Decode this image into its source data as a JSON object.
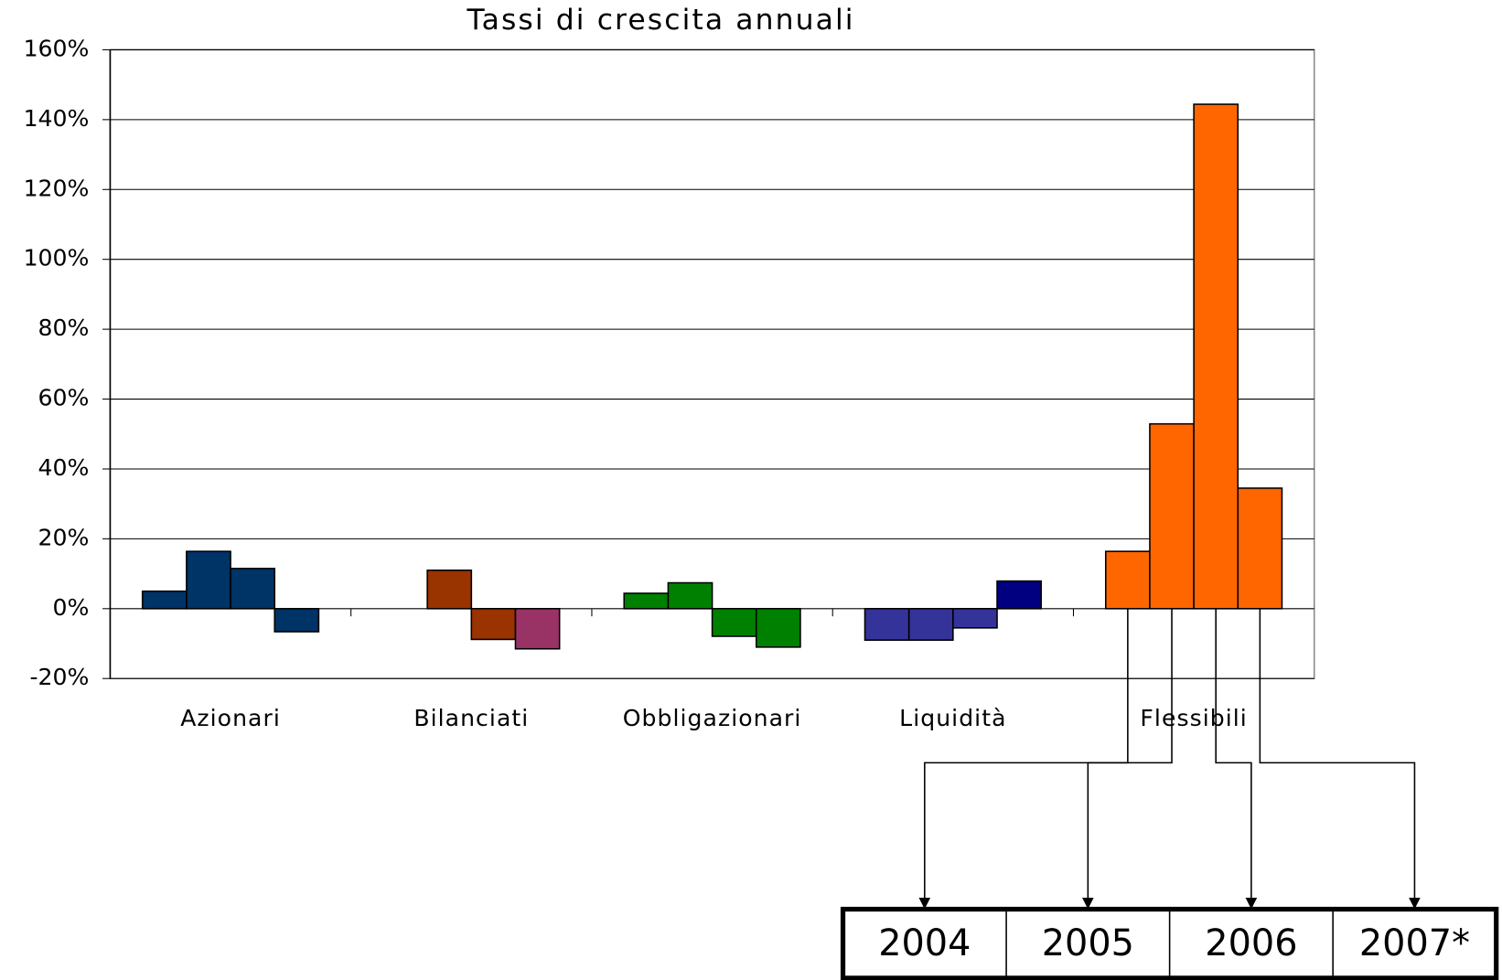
{
  "chart_data": {
    "type": "bar",
    "title": "Tassi di crescita annuali",
    "categories": [
      "Azionari",
      "Bilanciati",
      "Obbligazionari",
      "Liquidità",
      "Flessibili"
    ],
    "series": [
      {
        "name": "2004",
        "values": [
          5,
          null,
          4.4,
          -9,
          16.4
        ],
        "colors": [
          "#003366",
          null,
          "#008000",
          "#333399",
          "#ff6600"
        ]
      },
      {
        "name": "2005",
        "values": [
          16.4,
          11,
          7.4,
          -9,
          52.9
        ],
        "colors": [
          "#003366",
          "#993300",
          "#008000",
          "#333399",
          "#ff6600"
        ]
      },
      {
        "name": "2006",
        "values": [
          11.5,
          -8.8,
          -7.9,
          -5.5,
          144.4
        ],
        "colors": [
          "#003366",
          "#993300",
          "#008000",
          "#333399",
          "#ff6600"
        ]
      },
      {
        "name": "2007*",
        "values": [
          -6.6,
          -11.5,
          -11,
          7.9,
          34.5
        ],
        "colors": [
          "#003366",
          "#993366",
          "#008000",
          "#000080",
          "#ff6600"
        ]
      }
    ],
    "ylim": [
      -20,
      160
    ],
    "yticks": [
      {
        "value": -20,
        "label": "-20%"
      },
      {
        "value": 0,
        "label": "0%"
      },
      {
        "value": 20,
        "label": "20%"
      },
      {
        "value": 40,
        "label": "40%"
      },
      {
        "value": 60,
        "label": "60%"
      },
      {
        "value": 80,
        "label": "80%"
      },
      {
        "value": 100,
        "label": "100%"
      },
      {
        "value": 120,
        "label": "120%"
      },
      {
        "value": 140,
        "label": "140%"
      },
      {
        "value": 160,
        "label": "160%"
      }
    ],
    "grid": true
  }
}
